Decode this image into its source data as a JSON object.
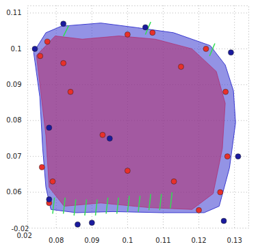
{
  "chart_data": {
    "type": "scatter",
    "xlim": [
      0.072,
      0.134
    ],
    "ylim": [
      0.05,
      0.112
    ],
    "xticks": [
      0.08,
      0.09,
      0.1,
      0.11,
      0.12,
      0.13
    ],
    "yticks": [
      0.06,
      0.07,
      0.08,
      0.09,
      0.1,
      0.11
    ],
    "zticks": [
      -0.02,
      0.02
    ],
    "grid": true,
    "hull": {
      "color": "#3a3ad0",
      "x": [
        0.0737,
        0.0771,
        0.0814,
        0.0925,
        0.1027,
        0.1129,
        0.1232,
        0.1274,
        0.1297,
        0.1303,
        0.1286,
        0.1257,
        0.1215,
        0.1095,
        0.0959,
        0.0856,
        0.0785,
        0.0771,
        0.0762,
        0.0754
      ],
      "y": [
        0.0991,
        0.1045,
        0.1063,
        0.1072,
        0.1059,
        0.1045,
        0.1009,
        0.0955,
        0.0883,
        0.0794,
        0.0668,
        0.0561,
        0.0543,
        0.0543,
        0.0546,
        0.0543,
        0.0552,
        0.0614,
        0.0722,
        0.0865
      ]
    },
    "surface": {
      "color": "#b02a6a",
      "x": [
        0.0745,
        0.0797,
        0.0873,
        0.0976,
        0.1078,
        0.1181,
        0.1249,
        0.1274,
        0.1266,
        0.124,
        0.1181,
        0.1061,
        0.0925,
        0.0822,
        0.078,
        0.0771,
        0.0754
      ],
      "y": [
        0.0982,
        0.1036,
        0.1027,
        0.1036,
        0.1027,
        0.1,
        0.0937,
        0.0848,
        0.0722,
        0.0596,
        0.0552,
        0.0557,
        0.057,
        0.0561,
        0.0614,
        0.0758,
        0.0901
      ]
    },
    "markers": [
      {
        "color": "#e8302a",
        "x": [
          0.0755,
          0.0775,
          0.082,
          0.1,
          0.107,
          0.115,
          0.122,
          0.1275,
          0.128,
          0.126,
          0.113,
          0.093,
          0.084,
          0.079,
          0.078,
          0.1,
          0.12,
          0.076
        ],
        "y": [
          0.098,
          0.102,
          0.096,
          0.104,
          0.1045,
          0.095,
          0.1,
          0.088,
          0.07,
          0.06,
          0.063,
          0.076,
          0.088,
          0.063,
          0.057,
          0.066,
          0.055,
          0.067
        ]
      },
      {
        "color": "#1a1a9e",
        "x": [
          0.074,
          0.082,
          0.105,
          0.129,
          0.131,
          0.127,
          0.086,
          0.09,
          0.095,
          0.078,
          0.078
        ],
        "y": [
          0.1,
          0.107,
          0.106,
          0.099,
          0.07,
          0.052,
          0.051,
          0.0515,
          0.075,
          0.078,
          0.058
        ]
      }
    ],
    "vectors": {
      "color": "#33dd55",
      "x1": [
        0.079,
        0.082,
        0.085,
        0.088,
        0.091,
        0.094,
        0.097,
        0.1,
        0.103,
        0.106,
        0.109,
        0.112,
        0.082,
        0.105,
        0.123
      ],
      "y1": [
        0.054,
        0.054,
        0.0535,
        0.0535,
        0.0535,
        0.054,
        0.054,
        0.0545,
        0.0545,
        0.055,
        0.055,
        0.0555,
        0.1035,
        0.104,
        0.098
      ],
      "x2": [
        0.0795,
        0.0825,
        0.0855,
        0.0885,
        0.0915,
        0.0945,
        0.0975,
        0.1005,
        0.1035,
        0.1065,
        0.1095,
        0.1125,
        0.0835,
        0.1065,
        0.1245
      ],
      "y2": [
        0.0585,
        0.0585,
        0.058,
        0.058,
        0.058,
        0.0585,
        0.0585,
        0.059,
        0.059,
        0.0595,
        0.0595,
        0.06,
        0.1065,
        0.1075,
        0.1015
      ]
    }
  }
}
